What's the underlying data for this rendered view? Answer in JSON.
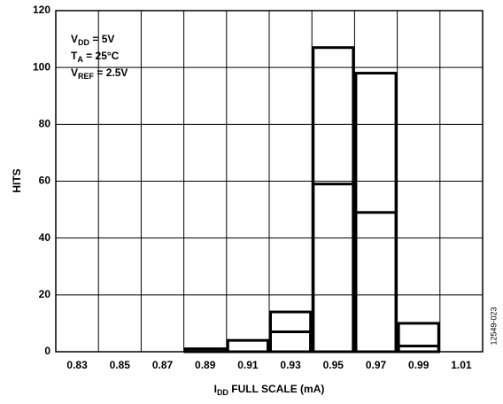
{
  "chart_data": {
    "type": "histogram",
    "annotations": [
      {
        "main": "V",
        "sub": "DD",
        "rest": " = 5V"
      },
      {
        "main": "T",
        "sub": "A",
        "rest": " = 25°C"
      },
      {
        "main": "V",
        "sub": "REF",
        "rest": " = 2.5V"
      }
    ],
    "x_label": {
      "main": "I",
      "sub": "DD",
      "rest": " FULL SCALE (mA)"
    },
    "y_label": "HITS",
    "figure_id": "12549-023",
    "bins": [
      0.82,
      0.84,
      0.86,
      0.88,
      0.9,
      0.92,
      0.94,
      0.96,
      0.98,
      1.0,
      1.02
    ],
    "series": [
      {
        "color": "#000000",
        "values": [
          0,
          0,
          0,
          1,
          4,
          14,
          107,
          98,
          10,
          0
        ]
      },
      {
        "color": "#000000",
        "values": [
          0,
          0,
          0,
          1,
          0,
          7,
          59,
          49,
          2,
          0
        ]
      }
    ],
    "xlim": [
      0.82,
      1.02
    ],
    "xticks": [
      0.83,
      0.85,
      0.87,
      0.89,
      0.91,
      0.93,
      0.95,
      0.97,
      0.99,
      1.01
    ],
    "ylim": [
      0,
      120
    ],
    "yticks": [
      0,
      20,
      40,
      60,
      80,
      100,
      120
    ],
    "grid": true
  }
}
